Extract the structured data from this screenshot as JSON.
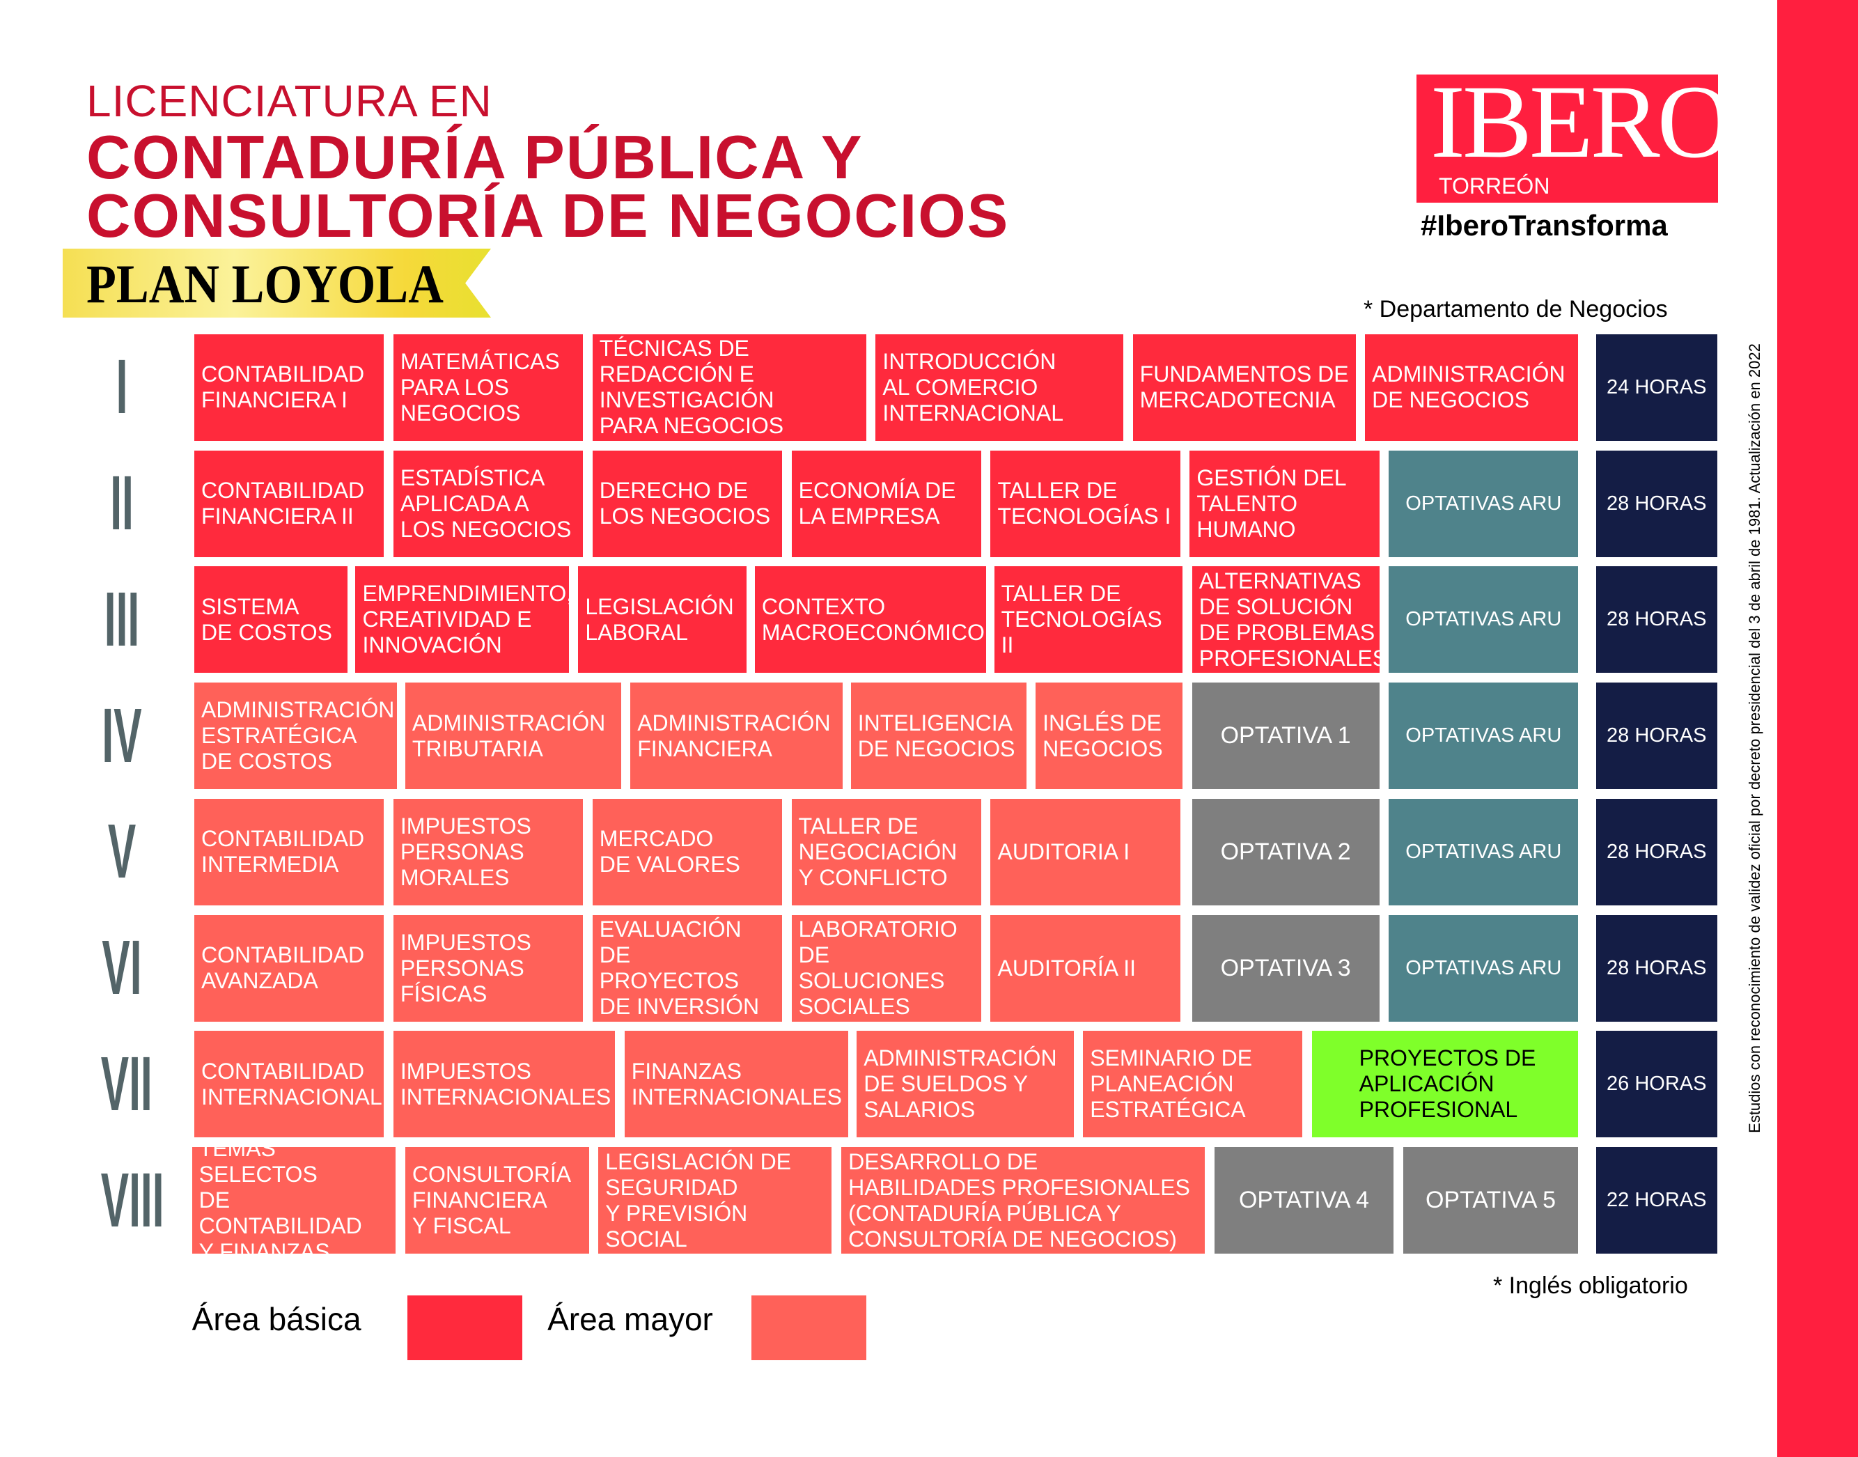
{
  "header": {
    "line1": "LICENCIATURA EN",
    "line2": "CONTADURÍA PÚBLICA Y",
    "line3": "CONSULTORÍA DE NEGOCIOS",
    "plan": "PLAN LOYOLA"
  },
  "logo": {
    "word": "IBERO",
    "sub": "TORREÓN",
    "hashtag": "#IberoTransforma"
  },
  "notes": {
    "departamento": "* Departamento de Negocios",
    "ingles": "* Inglés obligatorio",
    "validez": "Estudios con reconocimiento de validez oficial por decreto presidencial del 3 de abril de 1981. Actualización en 2022"
  },
  "colors": {
    "basica": "#ff2a3d",
    "mayor": "#ff6159",
    "optativa": "#7f7f7f",
    "aru": "#4f838b",
    "horas": "#141d45",
    "proyecto": "#7fff2a",
    "title": "#c8102e"
  },
  "semesters": [
    {
      "numeral": "I",
      "hours": "24 HORAS",
      "courses": [
        {
          "name": "CONTABILIDAD\nFINANCIERA I",
          "type": "basica"
        },
        {
          "name": "MATEMÁTICAS\nPARA LOS\nNEGOCIOS",
          "type": "basica"
        },
        {
          "name": "TÉCNICAS DE\nREDACCIÓN E\nINVESTIGACIÓN\nPARA NEGOCIOS",
          "type": "basica"
        },
        {
          "name": "INTRODUCCIÓN\nAL COMERCIO\nINTERNACIONAL",
          "type": "basica"
        },
        {
          "name": "FUNDAMENTOS DE\nMERCADOTECNIA",
          "type": "basica"
        },
        {
          "name": "ADMINISTRACIÓN\nDE NEGOCIOS",
          "type": "basica"
        }
      ]
    },
    {
      "numeral": "II",
      "hours": "28 HORAS",
      "courses": [
        {
          "name": "CONTABILIDAD\nFINANCIERA II",
          "type": "basica"
        },
        {
          "name": "ESTADÍSTICA\nAPLICADA A\nLOS NEGOCIOS",
          "type": "basica"
        },
        {
          "name": "DERECHO DE\nLOS NEGOCIOS",
          "type": "basica"
        },
        {
          "name": "ECONOMÍA DE\nLA EMPRESA",
          "type": "basica"
        },
        {
          "name": "TALLER DE\nTECNOLOGÍAS I",
          "type": "basica"
        },
        {
          "name": "GESTIÓN DEL\nTALENTO\nHUMANO",
          "type": "basica"
        },
        {
          "name": "OPTATIVAS ARU",
          "type": "aru"
        }
      ]
    },
    {
      "numeral": "III",
      "hours": "28 HORAS",
      "courses": [
        {
          "name": "SISTEMA\nDE COSTOS",
          "type": "basica"
        },
        {
          "name": "EMPRENDIMIENTO,\nCREATIVIDAD E\nINNOVACIÓN",
          "type": "basica"
        },
        {
          "name": "LEGISLACIÓN\nLABORAL",
          "type": "basica"
        },
        {
          "name": "CONTEXTO\nMACROECONÓMICO",
          "type": "basica"
        },
        {
          "name": "TALLER DE\nTECNOLOGÍAS II",
          "type": "basica"
        },
        {
          "name": "ALTERNATIVAS\nDE SOLUCIÓN\nDE PROBLEMAS\nPROFESIONALES",
          "type": "basica"
        },
        {
          "name": "OPTATIVAS ARU",
          "type": "aru"
        }
      ]
    },
    {
      "numeral": "IV",
      "hours": "28 HORAS",
      "courses": [
        {
          "name": "ADMINISTRACIÓN\nESTRATÉGICA\nDE COSTOS",
          "type": "mayor"
        },
        {
          "name": "ADMINISTRACIÓN\nTRIBUTARIA",
          "type": "mayor"
        },
        {
          "name": "ADMINISTRACIÓN\nFINANCIERA",
          "type": "mayor"
        },
        {
          "name": "INTELIGENCIA\nDE NEGOCIOS",
          "type": "mayor"
        },
        {
          "name": "INGLÉS DE\nNEGOCIOS",
          "type": "mayor"
        },
        {
          "name": "OPTATIVA 1",
          "type": "optativa"
        },
        {
          "name": "OPTATIVAS ARU",
          "type": "aru"
        }
      ]
    },
    {
      "numeral": "V",
      "hours": "28 HORAS",
      "courses": [
        {
          "name": "CONTABILIDAD\nINTERMEDIA",
          "type": "mayor"
        },
        {
          "name": "IMPUESTOS\nPERSONAS\nMORALES",
          "type": "mayor"
        },
        {
          "name": "MERCADO\nDE VALORES",
          "type": "mayor"
        },
        {
          "name": "TALLER DE\nNEGOCIACIÓN\nY CONFLICTO",
          "type": "mayor"
        },
        {
          "name": "AUDITORIA I",
          "type": "mayor"
        },
        {
          "name": "OPTATIVA 2",
          "type": "optativa"
        },
        {
          "name": "OPTATIVAS ARU",
          "type": "aru"
        }
      ]
    },
    {
      "numeral": "VI",
      "hours": "28 HORAS",
      "courses": [
        {
          "name": "CONTABILIDAD\nAVANZADA",
          "type": "mayor"
        },
        {
          "name": "IMPUESTOS\nPERSONAS\nFÍSICAS",
          "type": "mayor"
        },
        {
          "name": "EVALUACIÓN\nDE PROYECTOS\nDE INVERSIÓN",
          "type": "mayor"
        },
        {
          "name": "LABORATORIO\nDE SOLUCIONES\nSOCIALES",
          "type": "mayor"
        },
        {
          "name": "AUDITORÍA II",
          "type": "mayor"
        },
        {
          "name": "OPTATIVA 3",
          "type": "optativa"
        },
        {
          "name": "OPTATIVAS ARU",
          "type": "aru"
        }
      ]
    },
    {
      "numeral": "VII",
      "hours": "26 HORAS",
      "courses": [
        {
          "name": "CONTABILIDAD\nINTERNACIONAL",
          "type": "mayor"
        },
        {
          "name": "IMPUESTOS\nINTERNACIONALES",
          "type": "mayor"
        },
        {
          "name": "FINANZAS\nINTERNACIONALES",
          "type": "mayor"
        },
        {
          "name": "ADMINISTRACIÓN\nDE SUELDOS Y\nSALARIOS",
          "type": "mayor"
        },
        {
          "name": "SEMINARIO DE\nPLANEACIÓN\nESTRATÉGICA",
          "type": "mayor"
        },
        {
          "name": "PROYECTOS DE\nAPLICACIÓN\nPROFESIONAL",
          "type": "proyecto"
        }
      ]
    },
    {
      "numeral": "VIII",
      "hours": "22 HORAS",
      "courses": [
        {
          "name": "TEMAS SELECTOS\nDE CONTABILIDAD\nY FINANZAS",
          "type": "mayor"
        },
        {
          "name": "CONSULTORÍA\nFINANCIERA\nY FISCAL",
          "type": "mayor"
        },
        {
          "name": "LEGISLACIÓN DE\nSEGURIDAD\nY PREVISIÓN SOCIAL",
          "type": "mayor"
        },
        {
          "name": "DESARROLLO DE\nHABILIDADES PROFESIONALES\n(CONTADURÍA PÚBLICA Y\nCONSULTORÍA DE NEGOCIOS)",
          "type": "mayor"
        },
        {
          "name": "OPTATIVA 4",
          "type": "optativa"
        },
        {
          "name": "OPTATIVA 5",
          "type": "optativa"
        }
      ]
    }
  ],
  "legend": [
    {
      "label": "Área básica",
      "type": "basica"
    },
    {
      "label": "Área mayor",
      "type": "mayor"
    }
  ]
}
